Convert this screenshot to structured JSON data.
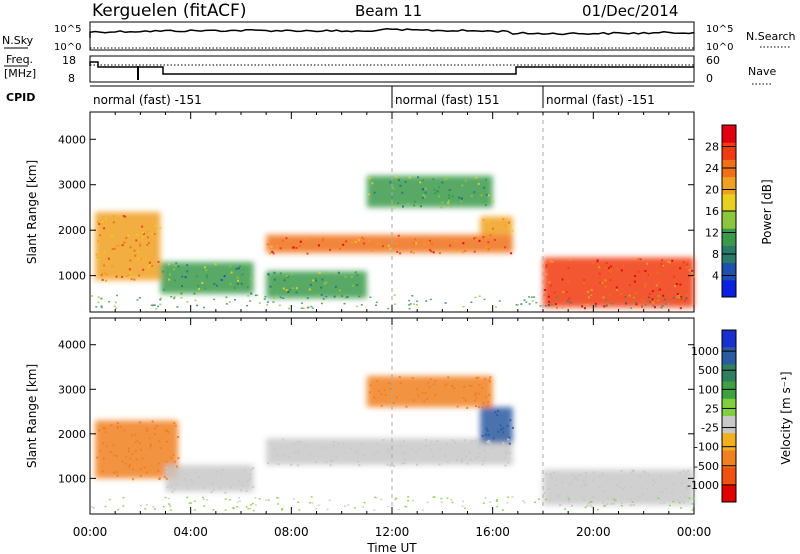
{
  "header": {
    "station": "Kerguelen (fitACF)",
    "beam": "Beam 11",
    "date": "01/Dec/2014"
  },
  "nsky_panel": {
    "label": "N.Sky",
    "ytick_top": "10^5",
    "ytick_bottom": "10^0",
    "right_label": "N.Search",
    "right_tick_top": "10^5",
    "right_tick_bottom": "10^0"
  },
  "freq_panel": {
    "label": "Freq.",
    "unit": "[MHz]",
    "ytick_top": "18",
    "ytick_bottom": "8",
    "right_label": "Nave",
    "right_tick_top": "60",
    "right_tick_bottom": "0"
  },
  "cpid_panel": {
    "label": "CPID",
    "segments": [
      {
        "start": 0,
        "end": 12,
        "label": "normal (fast) -151"
      },
      {
        "start": 12,
        "end": 18,
        "label": "normal (fast) 151"
      },
      {
        "start": 18,
        "end": 24,
        "label": "normal (fast) -151"
      }
    ]
  },
  "colors": {
    "power": [
      "#0b1fe0",
      "#1f4fb0",
      "#2a7a6a",
      "#3a9a4a",
      "#8cc63e",
      "#e8d020",
      "#f0a020",
      "#f07018",
      "#f03a10",
      "#e00010"
    ],
    "velocity": [
      "#1a2fd0",
      "#2a5aa0",
      "#2f7f60",
      "#3fa040",
      "#7fcf40",
      "#c8c8c8",
      "#f0b020",
      "#f08020",
      "#f05010",
      "#e00000"
    ]
  },
  "chart_data": [
    {
      "type": "heatmap",
      "name": "power",
      "xlabel": "",
      "ylabel": "Slant Range [km]",
      "xlim": [
        0,
        24
      ],
      "ylim": [
        200,
        4600
      ],
      "yticks": [
        1000,
        2000,
        3000,
        4000
      ],
      "colorbar": {
        "label": "Power [dB]",
        "range": [
          0,
          32
        ],
        "ticks": [
          4,
          8,
          12,
          16,
          20,
          24,
          28
        ]
      },
      "features": [
        {
          "x": [
            0.2,
            2.8
          ],
          "y": [
            900,
            2400
          ],
          "value": 22
        },
        {
          "x": [
            2.8,
            6.5
          ],
          "y": [
            600,
            1300
          ],
          "value": 12
        },
        {
          "x": [
            7.0,
            16.8
          ],
          "y": [
            1500,
            1900
          ],
          "value": 24
        },
        {
          "x": [
            7.0,
            11.0
          ],
          "y": [
            500,
            1100
          ],
          "value": 12
        },
        {
          "x": [
            11.0,
            16.0
          ],
          "y": [
            2500,
            3200
          ],
          "value": 12
        },
        {
          "x": [
            15.5,
            16.8
          ],
          "y": [
            1900,
            2300
          ],
          "value": 20
        },
        {
          "x": [
            18.0,
            24.0
          ],
          "y": [
            300,
            1400
          ],
          "value": 26
        }
      ]
    },
    {
      "type": "heatmap",
      "name": "velocity",
      "xlabel": "Time UT",
      "ylabel": "Slant Range [km]",
      "xlim": [
        0,
        24
      ],
      "ylim": [
        200,
        4600
      ],
      "xticks": [
        "00:00",
        "04:00",
        "08:00",
        "12:00",
        "16:00",
        "20:00",
        "00:00"
      ],
      "yticks": [
        1000,
        2000,
        3000,
        4000
      ],
      "colorbar": {
        "label": "Velocity [m s⁻¹]",
        "ticks": [
          "1000",
          "500",
          "100",
          "25",
          "-25",
          "-100",
          "-500",
          "-1000"
        ]
      },
      "features": [
        {
          "x": [
            0.2,
            3.5
          ],
          "y": [
            1000,
            2300
          ],
          "value": -200
        },
        {
          "x": [
            3.0,
            6.5
          ],
          "y": [
            700,
            1300
          ],
          "value": 0
        },
        {
          "x": [
            7.0,
            16.8
          ],
          "y": [
            1300,
            1900
          ],
          "value": 0
        },
        {
          "x": [
            11.0,
            16.0
          ],
          "y": [
            2600,
            3300
          ],
          "value": -150
        },
        {
          "x": [
            15.5,
            16.8
          ],
          "y": [
            1800,
            2600
          ],
          "value": 200
        },
        {
          "x": [
            18.0,
            24.0
          ],
          "y": [
            400,
            1200
          ],
          "value": 0
        }
      ]
    }
  ]
}
